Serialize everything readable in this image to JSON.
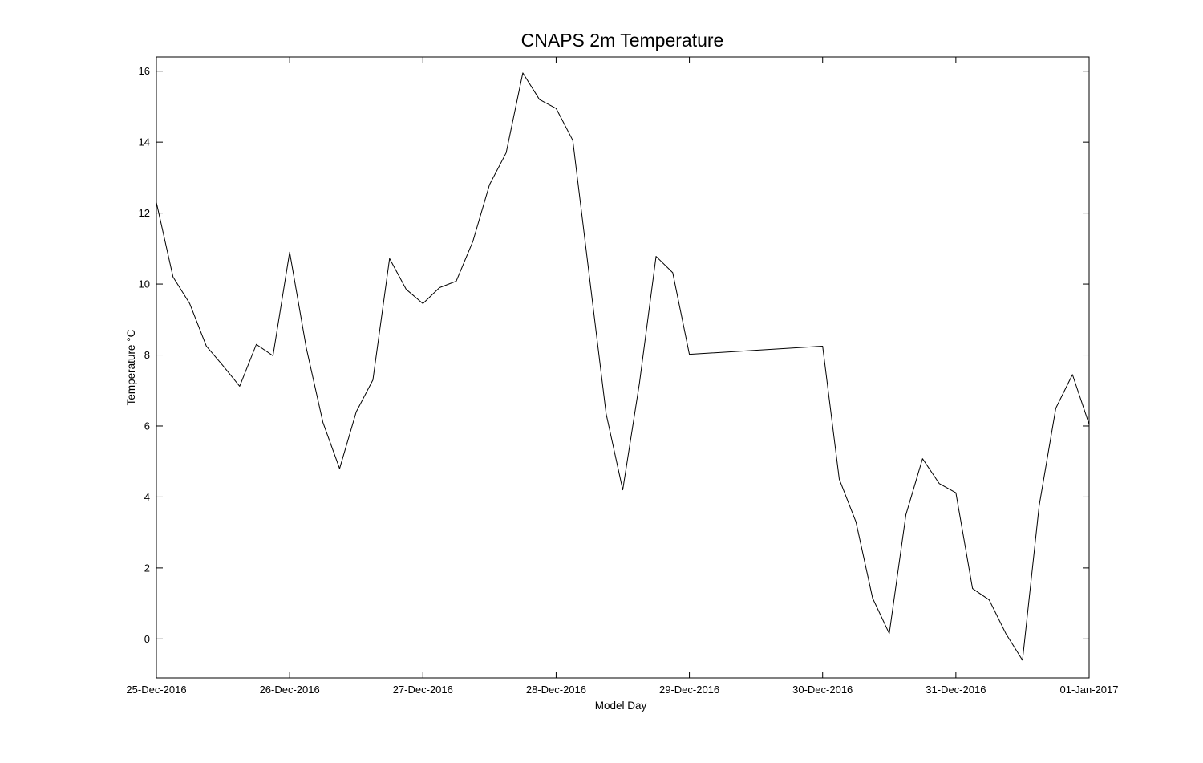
{
  "chart_data": {
    "type": "line",
    "title": "CNAPS 2m Temperature",
    "xlabel": "Model Day",
    "ylabel": "Temperature °C",
    "x_axis_type": "date",
    "xlim": [
      "2016-12-25T00:00",
      "2017-01-01T00:00"
    ],
    "ylim": [
      -1.1,
      16.4
    ],
    "x_ticks": [
      {
        "value": "2016-12-25T00:00",
        "label": "25-Dec-2016"
      },
      {
        "value": "2016-12-26T00:00",
        "label": "26-Dec-2016"
      },
      {
        "value": "2016-12-27T00:00",
        "label": "27-Dec-2016"
      },
      {
        "value": "2016-12-28T00:00",
        "label": "28-Dec-2016"
      },
      {
        "value": "2016-12-29T00:00",
        "label": "29-Dec-2016"
      },
      {
        "value": "2016-12-30T00:00",
        "label": "30-Dec-2016"
      },
      {
        "value": "2016-12-31T00:00",
        "label": "31-Dec-2016"
      },
      {
        "value": "2017-01-01T00:00",
        "label": "01-Jan-2017"
      }
    ],
    "y_ticks": [
      {
        "value": 0,
        "label": "0"
      },
      {
        "value": 2,
        "label": "2"
      },
      {
        "value": 4,
        "label": "4"
      },
      {
        "value": 6,
        "label": "6"
      },
      {
        "value": 8,
        "label": "8"
      },
      {
        "value": 10,
        "label": "10"
      },
      {
        "value": 12,
        "label": "12"
      },
      {
        "value": 14,
        "label": "14"
      },
      {
        "value": 16,
        "label": "16"
      }
    ],
    "grid": false,
    "legend": "none",
    "line_color": "#000000",
    "series": [
      {
        "x": [
          "2016-12-25T00:00",
          "2016-12-25T03:00",
          "2016-12-25T06:00",
          "2016-12-25T09:00",
          "2016-12-25T12:00",
          "2016-12-25T15:00",
          "2016-12-25T18:00",
          "2016-12-25T21:00",
          "2016-12-26T00:00",
          "2016-12-26T03:00",
          "2016-12-26T06:00",
          "2016-12-26T09:00",
          "2016-12-26T12:00",
          "2016-12-26T15:00",
          "2016-12-26T18:00",
          "2016-12-26T21:00",
          "2016-12-27T00:00",
          "2016-12-27T03:00",
          "2016-12-27T06:00",
          "2016-12-27T09:00",
          "2016-12-27T12:00",
          "2016-12-27T15:00",
          "2016-12-27T18:00",
          "2016-12-27T21:00",
          "2016-12-28T00:00",
          "2016-12-28T03:00",
          "2016-12-28T06:00",
          "2016-12-28T09:00",
          "2016-12-28T12:00",
          "2016-12-28T15:00",
          "2016-12-28T18:00",
          "2016-12-28T21:00",
          "2016-12-29T00:00",
          "2016-12-30T00:00",
          "2016-12-30T03:00",
          "2016-12-30T06:00",
          "2016-12-30T09:00",
          "2016-12-30T12:00",
          "2016-12-30T15:00",
          "2016-12-30T18:00",
          "2016-12-30T21:00",
          "2016-12-31T00:00",
          "2016-12-31T03:00",
          "2016-12-31T06:00",
          "2016-12-31T09:00",
          "2016-12-31T12:00",
          "2016-12-31T15:00",
          "2016-12-31T18:00",
          "2016-12-31T21:00",
          "2017-01-01T00:00"
        ],
        "y": [
          12.3,
          10.2,
          9.45,
          8.25,
          7.7,
          7.12,
          8.3,
          7.98,
          10.9,
          8.2,
          6.1,
          4.8,
          6.4,
          7.3,
          10.72,
          9.85,
          9.45,
          9.9,
          10.08,
          11.2,
          12.8,
          13.7,
          15.95,
          15.2,
          14.95,
          14.05,
          10.2,
          6.35,
          4.2,
          7.2,
          10.78,
          10.32,
          8.02,
          8.25,
          4.5,
          3.3,
          1.15,
          0.15,
          3.5,
          5.08,
          4.38,
          4.12,
          1.42,
          1.1,
          0.15,
          -0.6,
          3.75,
          6.5,
          7.45,
          6.05
        ]
      }
    ]
  }
}
